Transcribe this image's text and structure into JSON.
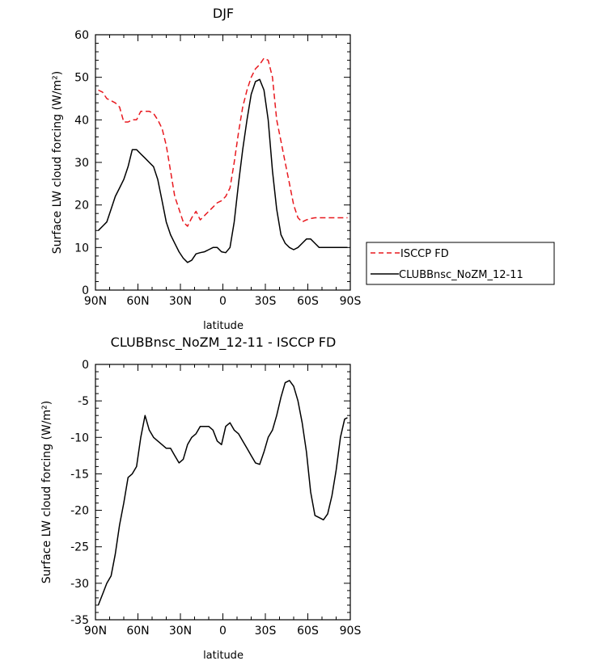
{
  "chart_data": [
    {
      "type": "line",
      "title": "DJF",
      "xlabel": "latitude",
      "ylabel": "Surface LW cloud forcing (W/m²)",
      "xlim": [
        -90,
        90
      ],
      "ylim": [
        0,
        60
      ],
      "xticks": [
        -90,
        -60,
        -30,
        0,
        30,
        60,
        90
      ],
      "xtick_labels": [
        "90N",
        "60N",
        "30N",
        "0",
        "30S",
        "60S",
        "90S"
      ],
      "yticks": [
        0,
        10,
        20,
        30,
        40,
        50,
        60
      ],
      "ytick_labels": [
        "0",
        "10",
        "20",
        "30",
        "40",
        "50",
        "60"
      ],
      "legend_position": "right",
      "series": [
        {
          "name": "ISCCP FD",
          "color": "#e8191f",
          "dash": "dashed",
          "x": [
            -88,
            -85,
            -82,
            -79,
            -76,
            -73,
            -70,
            -67,
            -64,
            -61,
            -58,
            -55,
            -52,
            -49,
            -46,
            -43,
            -40,
            -37,
            -34,
            -31,
            -28,
            -25,
            -22,
            -19,
            -16,
            -13,
            -10,
            -7,
            -4,
            -1,
            2,
            5,
            8,
            11,
            14,
            17,
            20,
            23,
            26,
            29,
            32,
            35,
            38,
            41,
            44,
            47,
            50,
            53,
            56,
            59,
            62,
            65,
            68,
            71,
            74,
            77,
            80,
            83,
            86,
            88
          ],
          "y": [
            47,
            46.5,
            45,
            44.5,
            44,
            43,
            39.5,
            39.5,
            40,
            40,
            42,
            42,
            42,
            41.5,
            40,
            38,
            34,
            28,
            22,
            19,
            16,
            15,
            17,
            18.5,
            16.5,
            17.5,
            18.5,
            19.5,
            20.5,
            21,
            22,
            24,
            30,
            37,
            43,
            47,
            50,
            52,
            53,
            54.5,
            54,
            50,
            40,
            35,
            30,
            25,
            20,
            17,
            16,
            16.5,
            16.8,
            17,
            17,
            17,
            17,
            17,
            17,
            17,
            17,
            17
          ]
        },
        {
          "name": "CLUBBnsc_NoZM_12-11",
          "color": "#000000",
          "dash": "solid",
          "x": [
            -88,
            -85,
            -82,
            -79,
            -76,
            -73,
            -70,
            -67,
            -64,
            -61,
            -58,
            -55,
            -52,
            -49,
            -46,
            -43,
            -40,
            -37,
            -34,
            -31,
            -28,
            -25,
            -22,
            -19,
            -16,
            -13,
            -10,
            -7,
            -4,
            -1,
            2,
            5,
            8,
            11,
            14,
            17,
            20,
            23,
            26,
            29,
            32,
            35,
            38,
            41,
            44,
            47,
            50,
            53,
            56,
            59,
            62,
            65,
            68,
            71,
            74,
            77,
            80,
            83,
            86,
            88
          ],
          "y": [
            14,
            15,
            16,
            19,
            22,
            24,
            26,
            29,
            33,
            33,
            32,
            31,
            30,
            29,
            26,
            21,
            16,
            13,
            11,
            9,
            7.5,
            6.5,
            7,
            8.5,
            8.8,
            9,
            9.5,
            10,
            10,
            9,
            8.8,
            10,
            16,
            25,
            33,
            40,
            46,
            49,
            49.5,
            47,
            40,
            28,
            19,
            13,
            11,
            10,
            9.5,
            10,
            11,
            12,
            12,
            11,
            10,
            10,
            10,
            10,
            10,
            10,
            10,
            10
          ]
        }
      ]
    },
    {
      "type": "line",
      "title": "CLUBBnsc_NoZM_12-11 - ISCCP FD",
      "xlabel": "latitude",
      "ylabel": "Surface LW cloud forcing (W/m²)",
      "xlim": [
        -90,
        90
      ],
      "ylim": [
        -35,
        0
      ],
      "xticks": [
        -90,
        -60,
        -30,
        0,
        30,
        60,
        90
      ],
      "xtick_labels": [
        "90N",
        "60N",
        "30N",
        "0",
        "30S",
        "60S",
        "90S"
      ],
      "yticks": [
        -35,
        -30,
        -25,
        -20,
        -15,
        -10,
        -5,
        0
      ],
      "ytick_labels": [
        "-35",
        "-30",
        "-25",
        "-20",
        "-15",
        "-10",
        "-5",
        "0"
      ],
      "series": [
        {
          "color": "#000000",
          "dash": "solid",
          "x": [
            -88,
            -85,
            -82,
            -79,
            -76,
            -73,
            -70,
            -67,
            -64,
            -61,
            -58,
            -55,
            -52,
            -49,
            -46,
            -43,
            -40,
            -37,
            -34,
            -31,
            -28,
            -25,
            -22,
            -19,
            -16,
            -13,
            -10,
            -7,
            -4,
            -1,
            2,
            5,
            8,
            11,
            14,
            17,
            20,
            23,
            26,
            29,
            32,
            35,
            38,
            41,
            44,
            47,
            50,
            53,
            56,
            59,
            62,
            65,
            68,
            71,
            74,
            77,
            80,
            83,
            86,
            88
          ],
          "y": [
            -33,
            -31.5,
            -30,
            -29,
            -26,
            -22,
            -19,
            -15.5,
            -15,
            -14,
            -10,
            -7,
            -9,
            -10,
            -10.5,
            -11,
            -11.5,
            -11.5,
            -12.5,
            -13.5,
            -13,
            -11,
            -10,
            -9.5,
            -8.5,
            -8.5,
            -8.5,
            -9,
            -10.5,
            -11,
            -8.5,
            -8,
            -9,
            -9.5,
            -10.5,
            -11.5,
            -12.5,
            -13.5,
            -13.7,
            -12,
            -10,
            -9,
            -7,
            -4.5,
            -2.5,
            -2.2,
            -3,
            -5,
            -8,
            -12,
            -17.5,
            -20.7,
            -21,
            -21.3,
            -20.5,
            -18,
            -14.5,
            -10,
            -7.5,
            -7.3
          ]
        }
      ]
    }
  ]
}
